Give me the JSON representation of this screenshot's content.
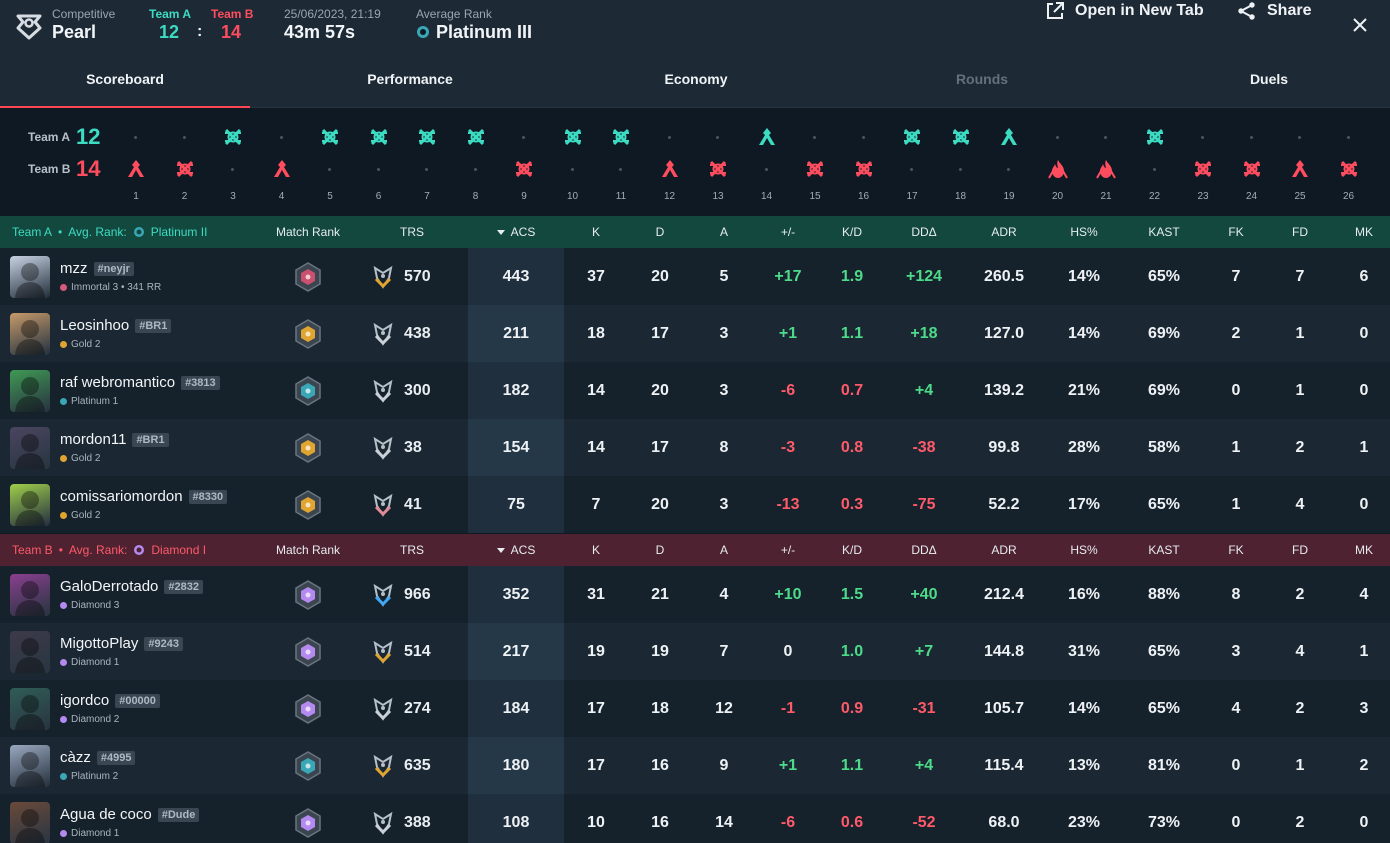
{
  "header": {
    "mode_label": "Competitive",
    "map": "Pearl",
    "team_a_label": "Team A",
    "team_b_label": "Team B",
    "team_a_score": "12",
    "score_separator": ":",
    "team_b_score": "14",
    "date": "25/06/2023, 21:19",
    "duration": "43m 57s",
    "avg_rank_label": "Average Rank",
    "avg_rank": "Platinum III",
    "open_new_tab": "Open in New Tab",
    "share": "Share"
  },
  "tabs": [
    "Scoreboard",
    "Performance",
    "Economy",
    "Rounds",
    "Duels"
  ],
  "rounds": {
    "team_a_label": "Team A",
    "team_a_score": "12",
    "team_b_label": "Team B",
    "team_b_score": "14",
    "list": [
      {
        "n": "1",
        "w": "B",
        "t": "def"
      },
      {
        "n": "2",
        "w": "B",
        "t": "elim"
      },
      {
        "n": "3",
        "w": "A",
        "t": "elim"
      },
      {
        "n": "4",
        "w": "B",
        "t": "def"
      },
      {
        "n": "5",
        "w": "A",
        "t": "elim"
      },
      {
        "n": "6",
        "w": "A",
        "t": "elim"
      },
      {
        "n": "7",
        "w": "A",
        "t": "elim"
      },
      {
        "n": "8",
        "w": "A",
        "t": "elim"
      },
      {
        "n": "9",
        "w": "B",
        "t": "elim"
      },
      {
        "n": "10",
        "w": "A",
        "t": "elim"
      },
      {
        "n": "11",
        "w": "A",
        "t": "elim"
      },
      {
        "n": "12",
        "w": "B",
        "t": "def"
      },
      {
        "n": "13",
        "w": "B",
        "t": "elim"
      },
      {
        "n": "14",
        "w": "A",
        "t": "def"
      },
      {
        "n": "15",
        "w": "B",
        "t": "elim"
      },
      {
        "n": "16",
        "w": "B",
        "t": "elim"
      },
      {
        "n": "17",
        "w": "A",
        "t": "elim"
      },
      {
        "n": "18",
        "w": "A",
        "t": "elim"
      },
      {
        "n": "19",
        "w": "A",
        "t": "def"
      },
      {
        "n": "20",
        "w": "B",
        "t": "boom"
      },
      {
        "n": "21",
        "w": "B",
        "t": "boom"
      },
      {
        "n": "22",
        "w": "A",
        "t": "elim"
      },
      {
        "n": "23",
        "w": "B",
        "t": "elim"
      },
      {
        "n": "24",
        "w": "B",
        "t": "elim"
      },
      {
        "n": "25",
        "w": "B",
        "t": "def"
      },
      {
        "n": "26",
        "w": "B",
        "t": "elim"
      }
    ]
  },
  "columns": [
    "Match Rank",
    "TRS",
    "ACS",
    "K",
    "D",
    "A",
    "+/-",
    "K/D",
    "DDΔ",
    "ADR",
    "HS%",
    "KAST",
    "FK",
    "FD",
    "MK"
  ],
  "team_a": {
    "name": "Team A",
    "avg_rank_label": "Avg. Rank:",
    "avg_rank": "Platinum II",
    "players": [
      {
        "name": "mzz",
        "tag": "#neyjr",
        "rank": "Immortal 3 • 341 RR",
        "rank_color": "#d65a7c",
        "match_rank_color": "#c9506f",
        "trs_color": "#e0a531",
        "trs": "570",
        "acs": "443",
        "k": "37",
        "d": "20",
        "a": "5",
        "pm": "+17",
        "kd": "1.9",
        "dd": "+124",
        "adr": "260.5",
        "hs": "14%",
        "kast": "65%",
        "fk": "7",
        "fd": "7",
        "mk": "6",
        "avatar_color": "#c8d2e4"
      },
      {
        "name": "Leosinhoo",
        "tag": "#BR1",
        "rank": "Gold 2",
        "rank_color": "#e0a531",
        "match_rank_color": "#e0a531",
        "trs_color": "#c9d0d8",
        "trs": "438",
        "acs": "211",
        "k": "18",
        "d": "17",
        "a": "3",
        "pm": "+1",
        "kd": "1.1",
        "dd": "+18",
        "adr": "127.0",
        "hs": "14%",
        "kast": "69%",
        "fk": "2",
        "fd": "1",
        "mk": "0",
        "avatar_color": "#c69a6a"
      },
      {
        "name": "raf webromantico",
        "tag": "#3813",
        "rank": "Platinum 1",
        "rank_color": "#3aa7b7",
        "match_rank_color": "#3aa7b7",
        "trs_color": "#c9d0d8",
        "trs": "300",
        "acs": "182",
        "k": "14",
        "d": "20",
        "a": "3",
        "pm": "-6",
        "kd": "0.7",
        "dd": "+4",
        "adr": "139.2",
        "hs": "21%",
        "kast": "69%",
        "fk": "0",
        "fd": "1",
        "mk": "0",
        "avatar_color": "#3f9a54"
      },
      {
        "name": "mordon11",
        "tag": "#BR1",
        "rank": "Gold 2",
        "rank_color": "#e0a531",
        "match_rank_color": "#e0a531",
        "trs_color": "#c9d0d8",
        "trs": "38",
        "acs": "154",
        "k": "14",
        "d": "17",
        "a": "8",
        "pm": "-3",
        "kd": "0.8",
        "dd": "-38",
        "adr": "99.8",
        "hs": "28%",
        "kast": "58%",
        "fk": "1",
        "fd": "2",
        "mk": "1",
        "avatar_color": "#4a4560"
      },
      {
        "name": "comissariomordon",
        "tag": "#8330",
        "rank": "Gold 2",
        "rank_color": "#e0a531",
        "match_rank_color": "#e0a531",
        "trs_color": "#e08a9a",
        "trs": "41",
        "acs": "75",
        "k": "7",
        "d": "20",
        "a": "3",
        "pm": "-13",
        "kd": "0.3",
        "dd": "-75",
        "adr": "52.2",
        "hs": "17%",
        "kast": "65%",
        "fk": "1",
        "fd": "4",
        "mk": "0",
        "avatar_color": "#9fcf4a"
      }
    ]
  },
  "team_b": {
    "name": "Team B",
    "avg_rank_label": "Avg. Rank:",
    "avg_rank": "Diamond I",
    "players": [
      {
        "name": "GaloDerrotado",
        "tag": "#2832",
        "rank": "Diamond 3",
        "rank_color": "#b58af0",
        "match_rank_color": "#b58af0",
        "trs_color": "#3fa9f5",
        "trs": "966",
        "acs": "352",
        "k": "31",
        "d": "21",
        "a": "4",
        "pm": "+10",
        "kd": "1.5",
        "dd": "+40",
        "adr": "212.4",
        "hs": "16%",
        "kast": "88%",
        "fk": "8",
        "fd": "2",
        "mk": "4",
        "avatar_color": "#8a3f8f"
      },
      {
        "name": "MigottoPlay",
        "tag": "#9243",
        "rank": "Diamond 1",
        "rank_color": "#b58af0",
        "match_rank_color": "#b58af0",
        "trs_color": "#e0a531",
        "trs": "514",
        "acs": "217",
        "k": "19",
        "d": "19",
        "a": "7",
        "pm": "0",
        "kd": "1.0",
        "dd": "+7",
        "adr": "144.8",
        "hs": "31%",
        "kast": "65%",
        "fk": "3",
        "fd": "4",
        "mk": "1",
        "avatar_color": "#3d3a4a"
      },
      {
        "name": "igordco",
        "tag": "#00000",
        "rank": "Diamond 2",
        "rank_color": "#b58af0",
        "match_rank_color": "#b58af0",
        "trs_color": "#c9d0d8",
        "trs": "274",
        "acs": "184",
        "k": "17",
        "d": "18",
        "a": "12",
        "pm": "-1",
        "kd": "0.9",
        "dd": "-31",
        "adr": "105.7",
        "hs": "14%",
        "kast": "65%",
        "fk": "4",
        "fd": "2",
        "mk": "3",
        "avatar_color": "#2f5d56"
      },
      {
        "name": "càzz",
        "tag": "#4995",
        "rank": "Platinum 2",
        "rank_color": "#3aa7b7",
        "match_rank_color": "#3aa7b7",
        "trs_color": "#e0a531",
        "trs": "635",
        "acs": "180",
        "k": "17",
        "d": "16",
        "a": "9",
        "pm": "+1",
        "kd": "1.1",
        "dd": "+4",
        "adr": "115.4",
        "hs": "13%",
        "kast": "81%",
        "fk": "0",
        "fd": "1",
        "mk": "2",
        "avatar_color": "#9aa8c0"
      },
      {
        "name": "Agua de coco",
        "tag": "#Dude",
        "rank": "Diamond 1",
        "rank_color": "#b58af0",
        "match_rank_color": "#b58af0",
        "trs_color": "#c9d0d8",
        "trs": "388",
        "acs": "108",
        "k": "10",
        "d": "16",
        "a": "14",
        "pm": "-6",
        "kd": "0.6",
        "dd": "-52",
        "adr": "68.0",
        "hs": "23%",
        "kast": "73%",
        "fk": "0",
        "fd": "2",
        "mk": "0",
        "avatar_color": "#6b4a3a"
      }
    ]
  }
}
